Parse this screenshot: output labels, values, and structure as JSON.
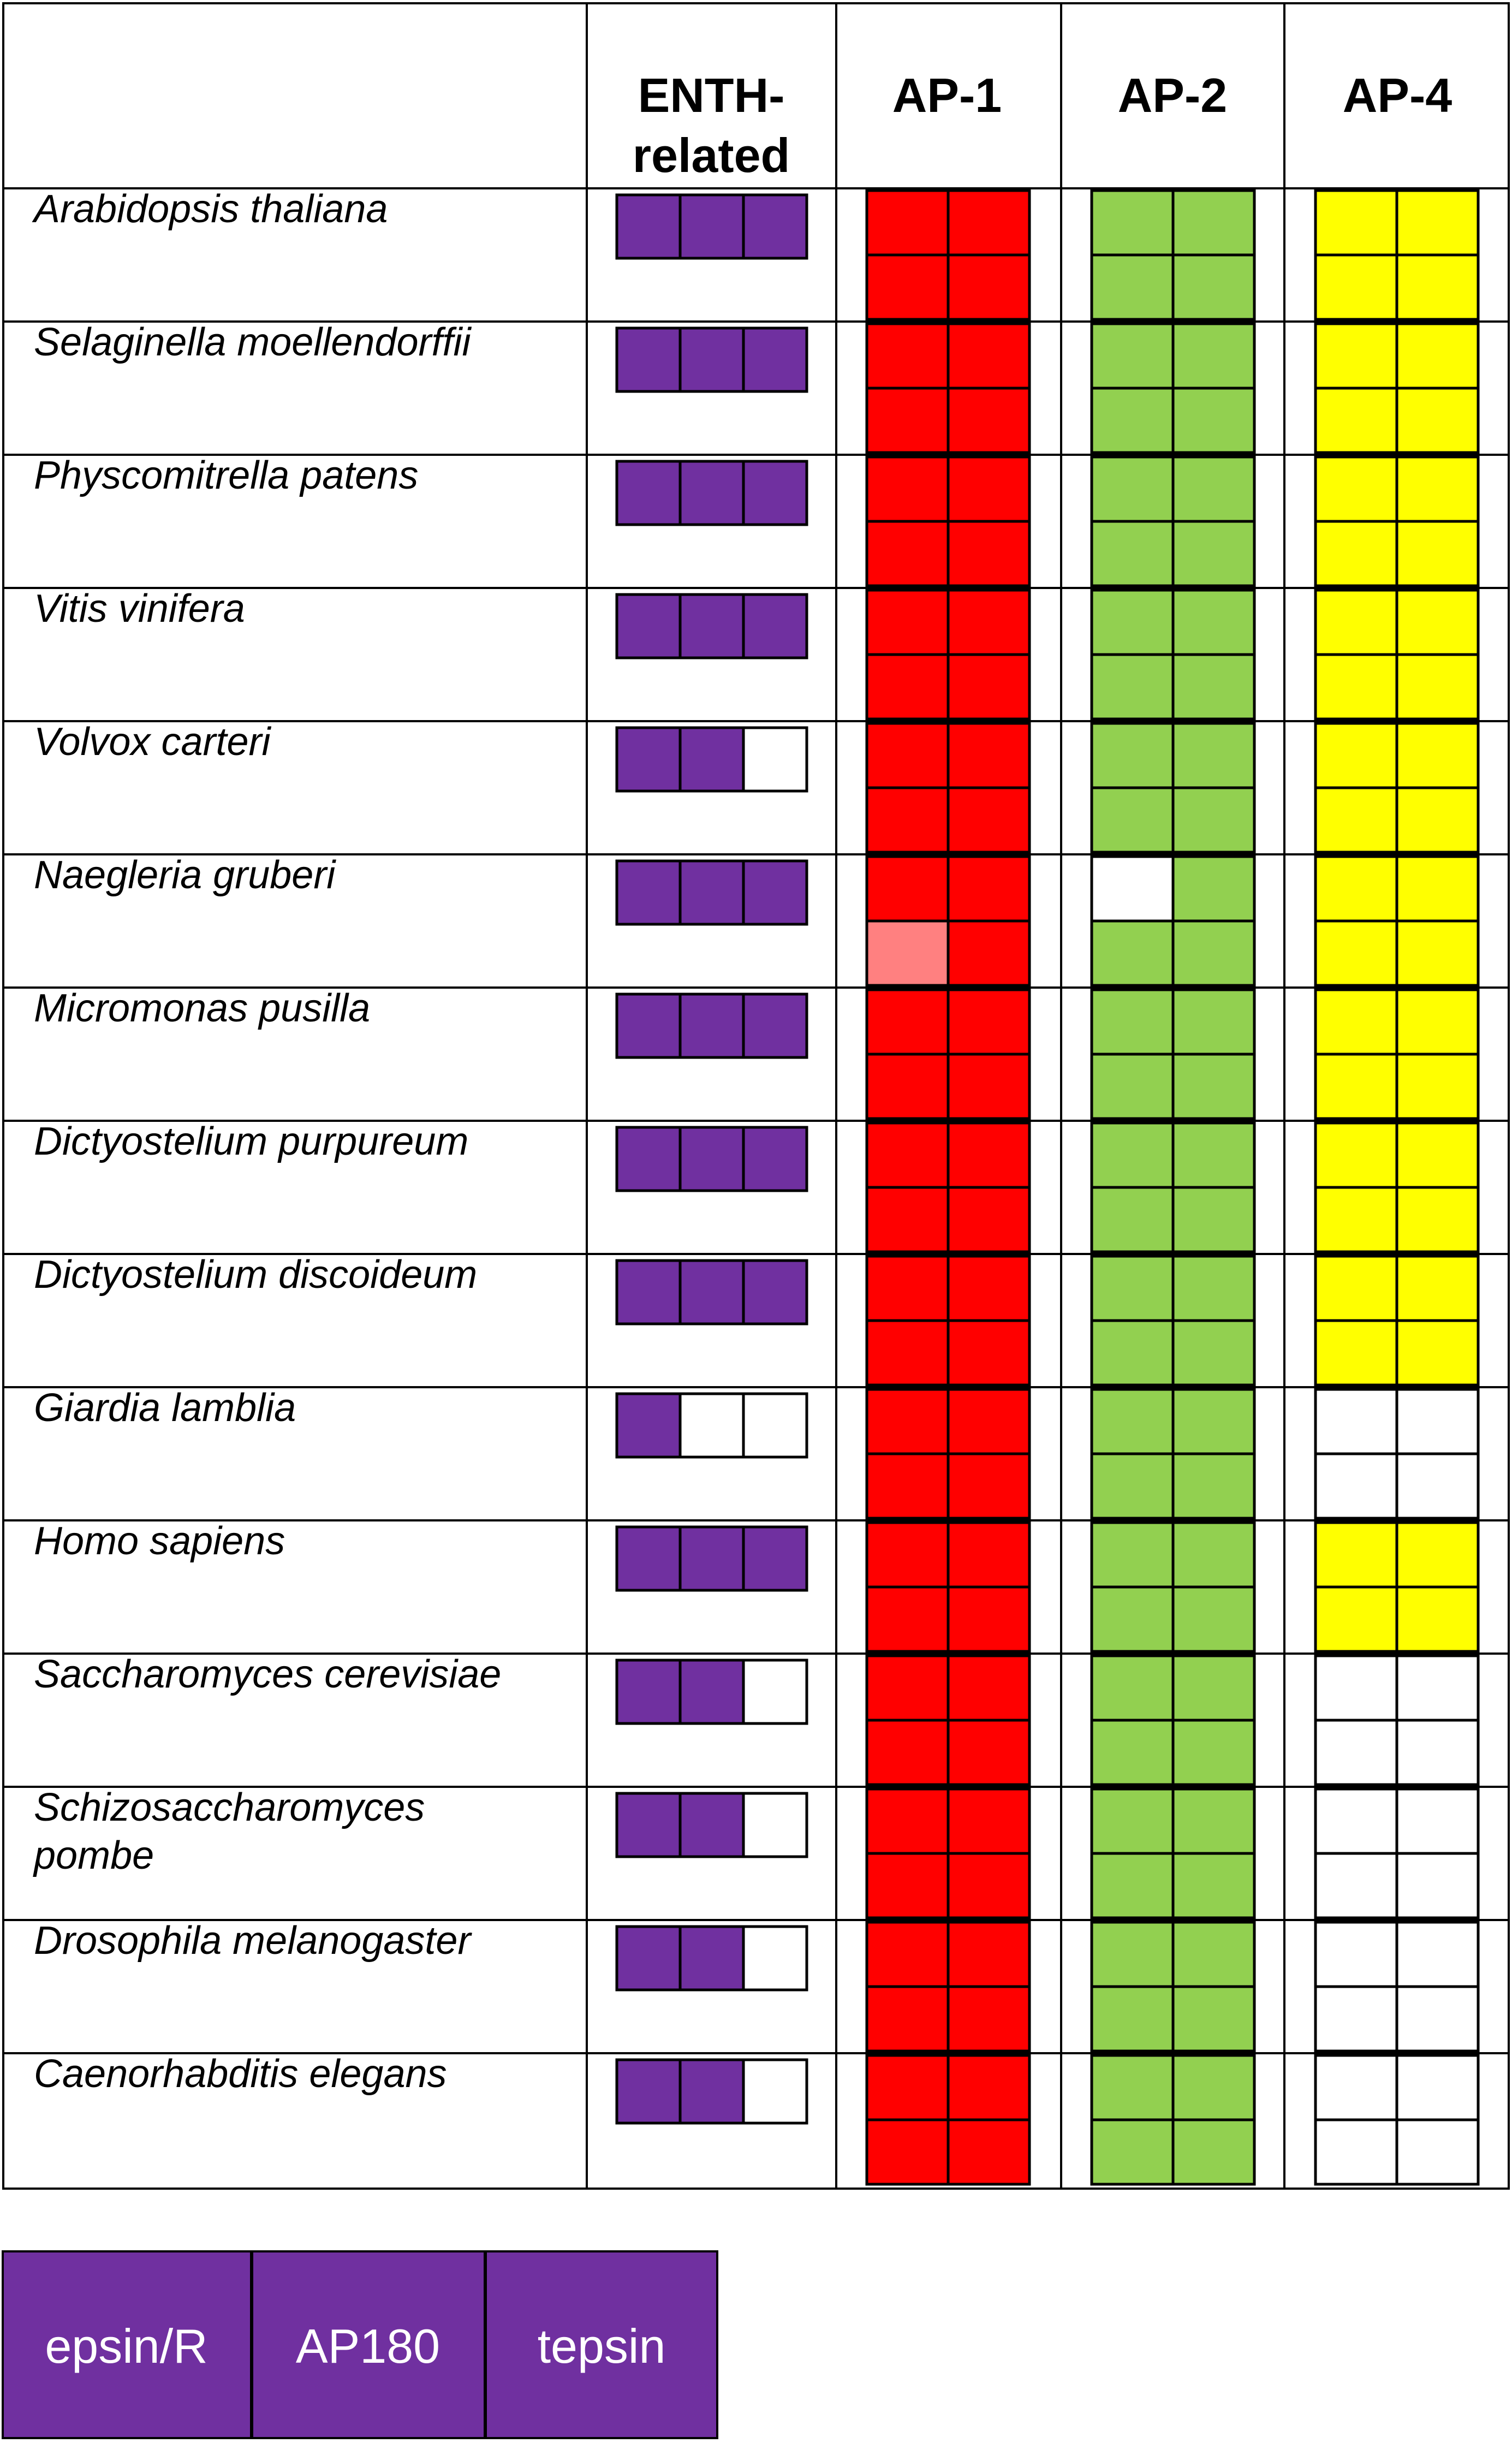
{
  "columns": {
    "enth": [
      "ENTH-",
      "related"
    ],
    "ap1": "AP-1",
    "ap2": "AP-2",
    "ap4": "AP-4"
  },
  "colors": {
    "purple": "#7030A0",
    "red": "#FF0000",
    "pink": "#FF8080",
    "green": "#92D050",
    "yellow": "#FFFF00",
    "empty": "#FFFFFF"
  },
  "cell_states": {
    "1": "present",
    "0": "absent",
    "2": "partial (light red)"
  },
  "species": [
    {
      "name": [
        "Arabidopsis thaliana"
      ],
      "enth": [
        1,
        1,
        1
      ],
      "ap1": [
        [
          1,
          1
        ],
        [
          1,
          1
        ]
      ],
      "ap2": [
        [
          1,
          1
        ],
        [
          1,
          1
        ]
      ],
      "ap4": [
        [
          1,
          1
        ],
        [
          1,
          1
        ]
      ]
    },
    {
      "name": [
        "Selaginella moellendorffii"
      ],
      "enth": [
        1,
        1,
        1
      ],
      "ap1": [
        [
          1,
          1
        ],
        [
          1,
          1
        ]
      ],
      "ap2": [
        [
          1,
          1
        ],
        [
          1,
          1
        ]
      ],
      "ap4": [
        [
          1,
          1
        ],
        [
          1,
          1
        ]
      ]
    },
    {
      "name": [
        "Physcomitrella patens"
      ],
      "enth": [
        1,
        1,
        1
      ],
      "ap1": [
        [
          1,
          1
        ],
        [
          1,
          1
        ]
      ],
      "ap2": [
        [
          1,
          1
        ],
        [
          1,
          1
        ]
      ],
      "ap4": [
        [
          1,
          1
        ],
        [
          1,
          1
        ]
      ]
    },
    {
      "name": [
        "Vitis vinifera"
      ],
      "enth": [
        1,
        1,
        1
      ],
      "ap1": [
        [
          1,
          1
        ],
        [
          1,
          1
        ]
      ],
      "ap2": [
        [
          1,
          1
        ],
        [
          1,
          1
        ]
      ],
      "ap4": [
        [
          1,
          1
        ],
        [
          1,
          1
        ]
      ]
    },
    {
      "name": [
        "Volvox carteri"
      ],
      "enth": [
        1,
        1,
        0
      ],
      "ap1": [
        [
          1,
          1
        ],
        [
          1,
          1
        ]
      ],
      "ap2": [
        [
          1,
          1
        ],
        [
          1,
          1
        ]
      ],
      "ap4": [
        [
          1,
          1
        ],
        [
          1,
          1
        ]
      ]
    },
    {
      "name": [
        "Naegleria gruberi"
      ],
      "enth": [
        1,
        1,
        1
      ],
      "ap1": [
        [
          1,
          1
        ],
        [
          2,
          1
        ]
      ],
      "ap2": [
        [
          0,
          1
        ],
        [
          1,
          1
        ]
      ],
      "ap4": [
        [
          1,
          1
        ],
        [
          1,
          1
        ]
      ]
    },
    {
      "name": [
        "Micromonas pusilla"
      ],
      "enth": [
        1,
        1,
        1
      ],
      "ap1": [
        [
          1,
          1
        ],
        [
          1,
          1
        ]
      ],
      "ap2": [
        [
          1,
          1
        ],
        [
          1,
          1
        ]
      ],
      "ap4": [
        [
          1,
          1
        ],
        [
          1,
          1
        ]
      ]
    },
    {
      "name": [
        "Dictyostelium purpureum"
      ],
      "enth": [
        1,
        1,
        1
      ],
      "ap1": [
        [
          1,
          1
        ],
        [
          1,
          1
        ]
      ],
      "ap2": [
        [
          1,
          1
        ],
        [
          1,
          1
        ]
      ],
      "ap4": [
        [
          1,
          1
        ],
        [
          1,
          1
        ]
      ]
    },
    {
      "name": [
        "Dictyostelium discoideum"
      ],
      "enth": [
        1,
        1,
        1
      ],
      "ap1": [
        [
          1,
          1
        ],
        [
          1,
          1
        ]
      ],
      "ap2": [
        [
          1,
          1
        ],
        [
          1,
          1
        ]
      ],
      "ap4": [
        [
          1,
          1
        ],
        [
          1,
          1
        ]
      ]
    },
    {
      "name": [
        "Giardia lamblia"
      ],
      "enth": [
        1,
        0,
        0
      ],
      "ap1": [
        [
          1,
          1
        ],
        [
          1,
          1
        ]
      ],
      "ap2": [
        [
          1,
          1
        ],
        [
          1,
          1
        ]
      ],
      "ap4": [
        [
          0,
          0
        ],
        [
          0,
          0
        ]
      ]
    },
    {
      "name": [
        "Homo sapiens"
      ],
      "enth": [
        1,
        1,
        1
      ],
      "ap1": [
        [
          1,
          1
        ],
        [
          1,
          1
        ]
      ],
      "ap2": [
        [
          1,
          1
        ],
        [
          1,
          1
        ]
      ],
      "ap4": [
        [
          1,
          1
        ],
        [
          1,
          1
        ]
      ]
    },
    {
      "name": [
        "Saccharomyces cerevisiae"
      ],
      "enth": [
        1,
        1,
        0
      ],
      "ap1": [
        [
          1,
          1
        ],
        [
          1,
          1
        ]
      ],
      "ap2": [
        [
          1,
          1
        ],
        [
          1,
          1
        ]
      ],
      "ap4": [
        [
          0,
          0
        ],
        [
          0,
          0
        ]
      ]
    },
    {
      "name": [
        "Schizosaccharomyces",
        "pombe"
      ],
      "enth": [
        1,
        1,
        0
      ],
      "ap1": [
        [
          1,
          1
        ],
        [
          1,
          1
        ]
      ],
      "ap2": [
        [
          1,
          1
        ],
        [
          1,
          1
        ]
      ],
      "ap4": [
        [
          0,
          0
        ],
        [
          0,
          0
        ]
      ]
    },
    {
      "name": [
        "Drosophila melanogaster"
      ],
      "enth": [
        1,
        1,
        0
      ],
      "ap1": [
        [
          1,
          1
        ],
        [
          1,
          1
        ]
      ],
      "ap2": [
        [
          1,
          1
        ],
        [
          1,
          1
        ]
      ],
      "ap4": [
        [
          0,
          0
        ],
        [
          0,
          0
        ]
      ]
    },
    {
      "name": [
        "Caenorhabditis elegans"
      ],
      "enth": [
        1,
        1,
        0
      ],
      "ap1": [
        [
          1,
          1
        ],
        [
          1,
          1
        ]
      ],
      "ap2": [
        [
          1,
          1
        ],
        [
          1,
          1
        ]
      ],
      "ap4": [
        [
          0,
          0
        ],
        [
          0,
          0
        ]
      ]
    }
  ],
  "legend": {
    "items": [
      {
        "label": "epsin/R"
      },
      {
        "label": "AP180"
      },
      {
        "label": "tepsin"
      }
    ]
  }
}
